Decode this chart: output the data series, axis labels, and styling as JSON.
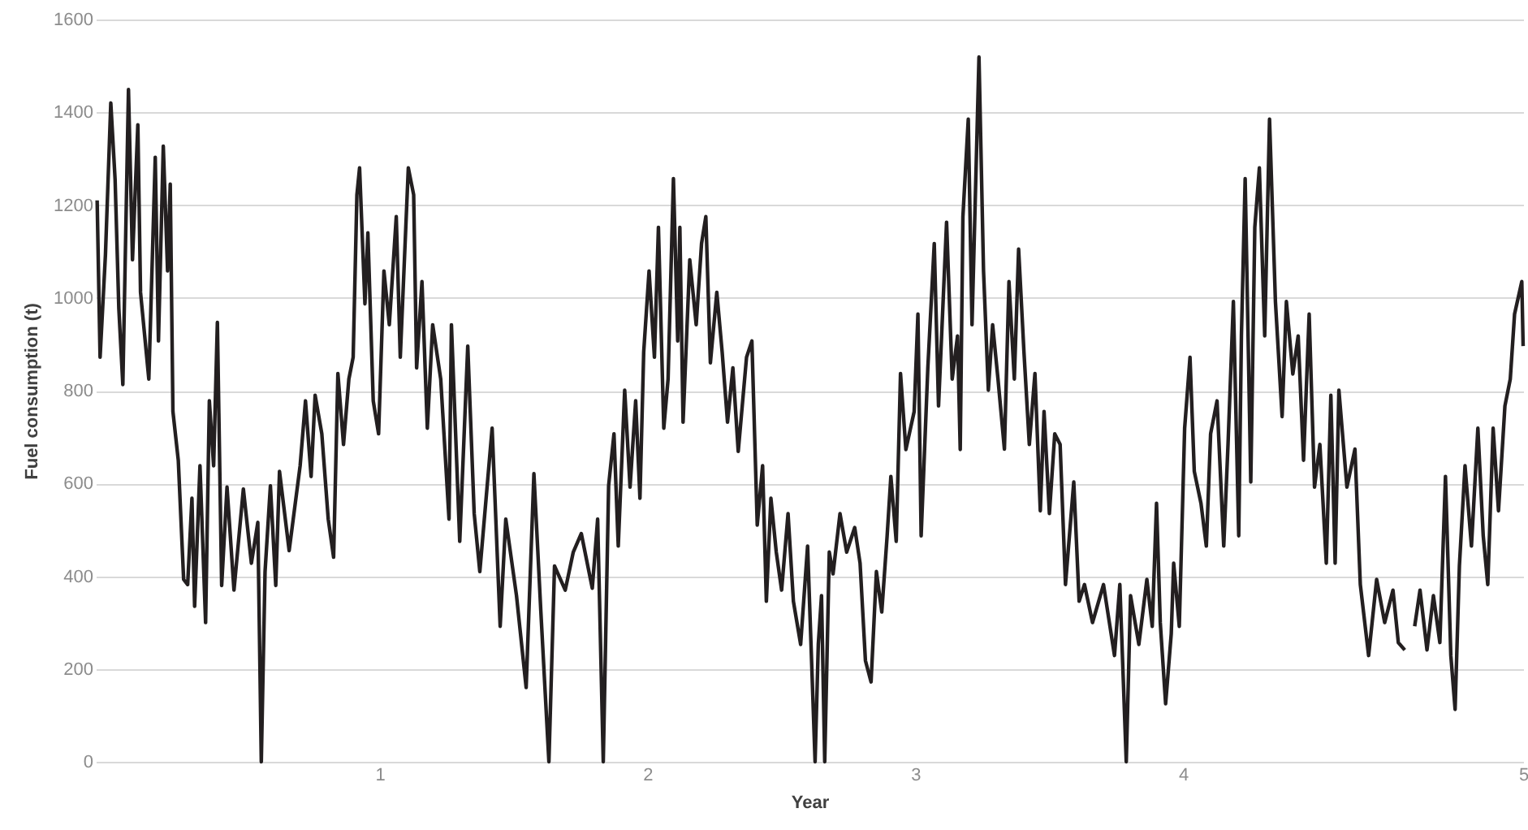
{
  "chart_data": {
    "type": "line",
    "xlabel": "Year",
    "ylabel": "Fuel consumption (t)",
    "xlim": [
      -0.06,
      5.27
    ],
    "xticks": [
      1,
      2,
      3,
      4,
      {
        "value": 5.27,
        "label": "5"
      }
    ],
    "ylim": [
      0,
      1600
    ],
    "yticks": [
      0,
      200,
      400,
      600,
      800,
      1000,
      1200,
      1400,
      1600
    ],
    "grid": "y",
    "marker": "none",
    "line_style": "solid",
    "series": [
      {
        "color": "#231f20",
        "x": [
          -0.055,
          -0.044,
          -0.024,
          -0.004,
          0.012,
          0.026,
          0.041,
          0.062,
          0.077,
          0.097,
          0.107,
          0.138,
          0.162,
          0.174,
          0.192,
          0.208,
          0.218,
          0.228,
          0.248,
          0.268,
          0.283,
          0.299,
          0.309,
          0.329,
          0.35,
          0.364,
          0.38,
          0.394,
          0.41,
          0.43,
          0.456,
          0.491,
          0.521,
          0.545,
          0.558,
          0.572,
          0.592,
          0.612,
          0.626,
          0.662,
          0.703,
          0.723,
          0.744,
          0.759,
          0.784,
          0.808,
          0.828,
          0.844,
          0.865,
          0.885,
          0.901,
          0.915,
          0.925,
          0.945,
          0.956,
          0.976,
          0.996,
          1.016,
          1.036,
          1.062,
          1.077,
          1.107,
          1.127,
          1.138,
          1.158,
          1.178,
          1.198,
          1.228,
          1.259,
          1.268,
          1.299,
          1.329,
          1.353,
          1.374,
          1.42,
          1.45,
          1.471,
          1.511,
          1.547,
          1.576,
          1.602,
          1.632,
          1.653,
          1.693,
          1.723,
          1.753,
          1.794,
          1.814,
          1.835,
          1.855,
          1.875,
          1.891,
          1.915,
          1.935,
          1.956,
          1.972,
          1.986,
          2.006,
          2.026,
          2.041,
          2.061,
          2.077,
          2.097,
          2.113,
          2.121,
          2.133,
          2.158,
          2.182,
          2.202,
          2.218,
          2.235,
          2.259,
          2.279,
          2.299,
          2.319,
          2.339,
          2.37,
          2.39,
          2.41,
          2.43,
          2.444,
          2.461,
          2.481,
          2.501,
          2.525,
          2.545,
          2.572,
          2.598,
          2.626,
          2.638,
          2.65,
          2.662,
          2.679,
          2.693,
          2.719,
          2.744,
          2.774,
          2.794,
          2.814,
          2.835,
          2.855,
          2.875,
          2.895,
          2.909,
          2.929,
          2.945,
          2.965,
          2.996,
          3.01,
          3.022,
          3.047,
          3.071,
          3.087,
          3.117,
          3.138,
          3.158,
          3.168,
          3.178,
          3.198,
          3.212,
          3.238,
          3.255,
          3.273,
          3.289,
          3.309,
          3.333,
          3.35,
          3.37,
          3.386,
          3.406,
          3.426,
          3.447,
          3.467,
          3.481,
          3.501,
          3.521,
          3.541,
          3.561,
          3.592,
          3.612,
          3.632,
          3.662,
          3.703,
          3.744,
          3.764,
          3.788,
          3.804,
          3.835,
          3.865,
          3.885,
          3.901,
          3.915,
          3.935,
          3.956,
          3.965,
          3.986,
          4.006,
          4.026,
          4.042,
          4.067,
          4.087,
          4.103,
          4.127,
          4.152,
          4.168,
          4.188,
          4.208,
          4.218,
          4.232,
          4.253,
          4.268,
          4.285,
          4.305,
          4.323,
          4.345,
          4.37,
          4.386,
          4.41,
          4.43,
          4.45,
          4.471,
          4.491,
          4.511,
          4.535,
          4.552,
          4.568,
          4.582,
          4.612,
          4.642,
          4.662,
          4.693,
          4.723,
          4.753,
          4.784,
          4.804,
          4.828,
          4.85,
          4.865,
          4.885,
          4.911,
          4.935,
          4.959,
          4.98,
          5.0,
          5.016,
          5.032,
          5.053,
          5.077,
          5.101,
          5.121,
          5.138,
          5.158,
          5.178,
          5.202,
          5.222,
          5.238,
          5.265,
          5.27
        ],
        "values": [
          1210,
          872,
          1093,
          1420,
          1256,
          977,
          813,
          1449,
          1082,
          1373,
          1012,
          825,
          1303,
          907,
          1327,
          1058,
          1245,
          755,
          650,
          393,
          382,
          568,
          335,
          638,
          300,
          778,
          638,
          947,
          380,
          592,
          370,
          588,
          428,
          516,
          0,
          410,
          595,
          380,
          626,
          455,
          638,
          778,
          615,
          790,
          707,
          523,
          441,
          837,
          684,
          825,
          872,
          1222,
          1280,
          987,
          1140,
          778,
          707,
          1058,
          942,
          1175,
          872,
          1280,
          1222,
          849,
          1035,
          719,
          942,
          825,
          523,
          942,
          475,
          896,
          535,
          410,
          719,
          292,
          523,
          358,
          160,
          621,
          323,
          0,
          422,
          370,
          452,
          492,
          374,
          523,
          0,
          595,
          707,
          465,
          801,
          592,
          778,
          568,
          883,
          1058,
          872,
          1152,
          719,
          825,
          1257,
          907,
          1152,
          732,
          1082,
          942,
          1117,
          1175,
          860,
          1012,
          883,
          732,
          849,
          669,
          872,
          907,
          510,
          638,
          346,
          568,
          452,
          370,
          535,
          346,
          253,
          465,
          0,
          253,
          358,
          0,
          452,
          405,
          535,
          452,
          505,
          428,
          218,
          172,
          410,
          323,
          487,
          615,
          475,
          837,
          673,
          755,
          965,
          487,
          849,
          1117,
          767,
          1163,
          825,
          918,
          673,
          1175,
          1385,
          942,
          1519,
          1058,
          801,
          942,
          825,
          674,
          1035,
          825,
          1105,
          883,
          684,
          837,
          541,
          755,
          535,
          707,
          684,
          382,
          603,
          346,
          382,
          300,
          382,
          229,
          382,
          0,
          358,
          253,
          393,
          292,
          557,
          300,
          125,
          276,
          428,
          292,
          719,
          872,
          626,
          557,
          465,
          707,
          778,
          465,
          684,
          992,
          487,
          918,
          1257,
          603,
          1152,
          1280,
          918,
          1385,
          992,
          744,
          992,
          836,
          918,
          650,
          965,
          592,
          684,
          428,
          790,
          428,
          801,
          592,
          674,
          382,
          229,
          393,
          300,
          370,
          257,
          241,
          null,
          292,
          370,
          241,
          358,
          257,
          615,
          229,
          113,
          422,
          638,
          465,
          719,
          487,
          382,
          719,
          541,
          767,
          825,
          965,
          1035,
          896
        ]
      }
    ]
  }
}
